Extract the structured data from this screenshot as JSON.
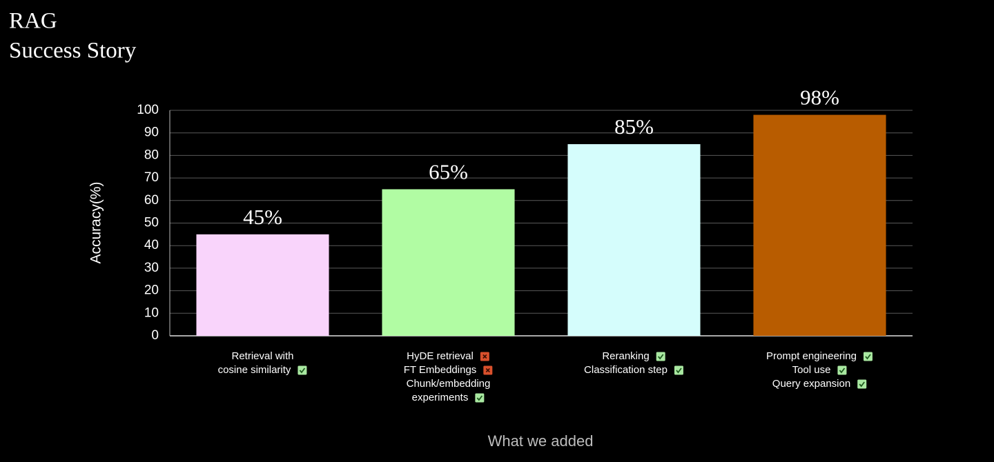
{
  "chart_data": {
    "type": "bar",
    "title": "RAG",
    "subtitle": "Success Story",
    "y_label": "Accuracy(%)",
    "x_label": "What we added",
    "categories": [
      {
        "items": [
          {
            "lines": [
              "Retrieval with",
              "cosine similarity"
            ],
            "status": "check"
          }
        ]
      },
      {
        "items": [
          {
            "lines": [
              "HyDE retrieval"
            ],
            "status": "cross"
          },
          {
            "lines": [
              "FT Embeddings"
            ],
            "status": "cross"
          },
          {
            "lines": [
              "Chunk/embedding",
              "experiments"
            ],
            "status": "check"
          }
        ]
      },
      {
        "items": [
          {
            "lines": [
              "Reranking"
            ],
            "status": "check"
          },
          {
            "lines": [
              "Classification step"
            ],
            "status": "check"
          }
        ]
      },
      {
        "items": [
          {
            "lines": [
              "Prompt engineering"
            ],
            "status": "check"
          },
          {
            "lines": [
              "Tool use"
            ],
            "status": "check"
          },
          {
            "lines": [
              "Query expansion"
            ],
            "status": "check"
          }
        ]
      }
    ],
    "values": [
      45,
      65,
      85,
      98
    ],
    "value_labels": [
      "45%",
      "65%",
      "85%",
      "98%"
    ],
    "colors": [
      "#f9d4fb",
      "#b1fca3",
      "#d5fdfc",
      "#b85c00"
    ],
    "ylim": [
      0,
      100
    ],
    "yticks": [
      0,
      10,
      20,
      30,
      40,
      50,
      60,
      70,
      80,
      90,
      100
    ],
    "grid": true
  }
}
